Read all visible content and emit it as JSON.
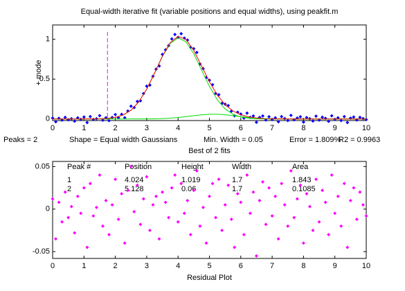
{
  "chart_data": [
    {
      "type": "scatter",
      "title": "Equal-width iterative fit (variable positions and equal widths), using peakfit.m",
      "ylabel": "+ mode",
      "xlabel": "Best of 2 fits",
      "footer": [
        "Peaks = 2",
        "Shape = Equal width Gaussians",
        "Min. Width = 0.05",
        "Error = 1.809%",
        "R2 = 0.9963"
      ],
      "xlim": [
        0,
        10
      ],
      "xticks": [
        0,
        1,
        2,
        3,
        4,
        5,
        6,
        7,
        8,
        9,
        10
      ],
      "ylim": [
        -0.02,
        1.18
      ],
      "yticks": [
        0,
        0.5,
        1
      ],
      "vline": {
        "x": 1.75,
        "color": "#ff00ff"
      },
      "series": [
        {
          "style": "markers",
          "color": "#0000ff",
          "x": [
            0,
            0.1,
            0.2,
            0.3,
            0.4,
            0.5,
            0.6,
            0.7,
            0.8,
            0.9,
            1,
            1.1,
            1.2,
            1.3,
            1.4,
            1.5,
            1.6,
            1.7,
            1.8,
            1.9,
            2,
            2.1,
            2.2,
            2.3,
            2.4,
            2.5,
            2.6,
            2.7,
            2.8,
            2.9,
            3,
            3.1,
            3.2,
            3.3,
            3.4,
            3.5,
            3.6,
            3.7,
            3.8,
            3.9,
            4,
            4.1,
            4.2,
            4.3,
            4.4,
            4.5,
            4.6,
            4.7,
            4.8,
            4.9,
            5,
            5.1,
            5.2,
            5.3,
            5.4,
            5.5,
            5.6,
            5.7,
            5.8,
            5.9,
            6,
            6.1,
            6.2,
            6.3,
            6.4,
            6.5,
            6.6,
            6.7,
            6.8,
            6.9,
            7,
            7.1,
            7.2,
            7.3,
            7.4,
            7.5,
            7.6,
            7.7,
            7.8,
            7.9,
            8,
            8.1,
            8.2,
            8.3,
            8.4,
            8.5,
            8.6,
            8.7,
            8.8,
            8.9,
            9,
            9.1,
            9.2,
            9.3,
            9.4,
            9.5,
            9.6,
            9.7,
            9.8,
            9.9,
            10
          ],
          "values": [
            0.012,
            -0.035,
            0.008,
            -0.015,
            0.02,
            -0.01,
            0.003,
            -0.028,
            0.015,
            -0.005,
            0.025,
            -0.045,
            0.03,
            -0.007,
            0.003,
            0.042,
            -0.016,
            0.016,
            -0.021,
            0.019,
            0.055,
            0.016,
            0.058,
            0.016,
            0.1,
            0.16,
            0.143,
            0.22,
            0.228,
            0.319,
            0.412,
            0.425,
            0.535,
            0.625,
            0.665,
            0.81,
            0.868,
            0.92,
            1.005,
            1.06,
            1.025,
            1.07,
            1.015,
            0.99,
            0.9,
            0.882,
            0.835,
            0.69,
            0.632,
            0.52,
            0.485,
            0.43,
            0.32,
            0.305,
            0.195,
            0.185,
            0.168,
            0.098,
            0.04,
            0.084,
            0.061,
            0.012,
            0.073,
            0.02,
            0.038,
            -0.042,
            0.019,
            0.038,
            -0.014,
            0.028,
            -0.006,
            0.015,
            -0.035,
            0.03,
            0.005,
            -0.02,
            0.045,
            -0.01,
            0.012,
            0.028,
            -0.04,
            0.018,
            0.003,
            -0.025,
            0.035,
            -0.015,
            0.022,
            0.008,
            -0.03,
            0.04,
            -0.005,
            0.015,
            -0.02,
            0.03,
            -0.045,
            0.01,
            0.025,
            -0.012,
            0.02,
            0.005,
            -0.008
          ]
        },
        {
          "style": "line",
          "color": "#00dd00",
          "x": [
            0,
            0.25,
            0.5,
            0.75,
            1,
            1.25,
            1.5,
            1.75,
            2,
            2.25,
            2.5,
            2.75,
            3,
            3.25,
            3.5,
            3.75,
            4,
            4.25,
            4.5,
            4.75,
            5,
            5.25,
            5.5,
            5.75,
            6,
            6.25,
            6.5,
            6.75,
            7,
            7.25,
            7.5,
            7.75,
            8,
            8.25,
            8.5,
            8.75,
            9,
            9.25,
            9.5,
            9.75,
            10
          ],
          "values": [
            0,
            0,
            0,
            0,
            0.0002,
            0.0006,
            0.0023,
            0.007,
            0.02,
            0.05,
            0.11,
            0.215,
            0.373,
            0.573,
            0.783,
            0.948,
            1.018,
            0.97,
            0.82,
            0.614,
            0.409,
            0.241,
            0.126,
            0.059,
            0.024,
            0.009,
            0.003,
            0.001,
            0,
            0,
            0,
            0,
            0,
            0,
            0,
            0,
            0,
            0,
            0,
            0,
            0
          ]
        },
        {
          "style": "line",
          "color": "#00dd00",
          "x": [
            0,
            0.25,
            0.5,
            0.75,
            1,
            1.25,
            1.5,
            1.75,
            2,
            2.25,
            2.5,
            2.75,
            3,
            3.25,
            3.5,
            3.75,
            4,
            4.25,
            4.5,
            4.75,
            5,
            5.25,
            5.5,
            5.75,
            6,
            6.25,
            6.5,
            6.75,
            7,
            7.25,
            7.5,
            7.75,
            8,
            8.25,
            8.5,
            8.75,
            9,
            9.25,
            9.5,
            9.75,
            10
          ],
          "values": [
            0,
            0,
            0,
            0,
            0,
            0,
            0,
            0,
            0,
            0,
            0.0002,
            0.0004,
            0.0008,
            0.002,
            0.005,
            0.01,
            0.018,
            0.029,
            0.041,
            0.052,
            0.059,
            0.059,
            0.053,
            0.042,
            0.029,
            0.018,
            0.01,
            0.005,
            0.002,
            0.001,
            0,
            0,
            0,
            0,
            0,
            0,
            0,
            0,
            0,
            0,
            0
          ]
        },
        {
          "style": "line",
          "color": "#ff0000",
          "x": [
            0,
            0.25,
            0.5,
            0.75,
            1,
            1.25,
            1.5,
            1.75,
            2,
            2.25,
            2.5,
            2.75,
            3,
            3.25,
            3.5,
            3.75,
            4,
            4.25,
            4.5,
            4.75,
            5,
            5.25,
            5.5,
            5.75,
            6,
            6.25,
            6.5,
            6.75,
            7,
            7.25,
            7.5,
            7.75,
            8,
            8.25,
            8.5,
            8.75,
            9,
            9.25,
            9.5,
            9.75,
            10
          ],
          "values": [
            0,
            0,
            0,
            0,
            0.0002,
            0.0006,
            0.0023,
            0.007,
            0.02,
            0.05,
            0.11,
            0.215,
            0.374,
            0.575,
            0.788,
            0.958,
            1.036,
            0.999,
            0.861,
            0.666,
            0.468,
            0.3,
            0.179,
            0.101,
            0.053,
            0.027,
            0.013,
            0.006,
            0.002,
            0.001,
            0,
            0,
            0,
            0,
            0,
            0,
            0,
            0,
            0,
            0,
            0
          ]
        }
      ]
    },
    {
      "type": "scatter",
      "xlabel": "Residual Plot",
      "xlim": [
        0,
        10
      ],
      "xticks": [
        0,
        1,
        2,
        3,
        4,
        5,
        6,
        7,
        8,
        9,
        10
      ],
      "ylim": [
        -0.058,
        0.056
      ],
      "yticks": [
        -0.05,
        0,
        0.05
      ],
      "table": {
        "columns": [
          "Peak #",
          "Position",
          "Height",
          "Width",
          "Area"
        ],
        "rows": [
          [
            1,
            4.024,
            1.019,
            1.7,
            1.843
          ],
          [
            2,
            5.128,
            0.06,
            1.7,
            0.1085
          ]
        ]
      },
      "series": [
        {
          "style": "markers",
          "color": "#ff00ff",
          "x": [
            0,
            0.1,
            0.2,
            0.3,
            0.4,
            0.5,
            0.6,
            0.7,
            0.8,
            0.9,
            1,
            1.1,
            1.2,
            1.3,
            1.4,
            1.5,
            1.6,
            1.7,
            1.8,
            1.9,
            2,
            2.1,
            2.2,
            2.3,
            2.4,
            2.5,
            2.6,
            2.7,
            2.8,
            2.9,
            3,
            3.1,
            3.2,
            3.3,
            3.4,
            3.5,
            3.6,
            3.7,
            3.8,
            3.9,
            4,
            4.1,
            4.2,
            4.3,
            4.4,
            4.5,
            4.6,
            4.7,
            4.8,
            4.9,
            5,
            5.1,
            5.2,
            5.3,
            5.4,
            5.5,
            5.6,
            5.7,
            5.8,
            5.9,
            6,
            6.1,
            6.2,
            6.3,
            6.4,
            6.5,
            6.6,
            6.7,
            6.8,
            6.9,
            7,
            7.1,
            7.2,
            7.3,
            7.4,
            7.5,
            7.6,
            7.7,
            7.8,
            7.9,
            8,
            8.1,
            8.2,
            8.3,
            8.4,
            8.5,
            8.6,
            8.7,
            8.8,
            8.9,
            9,
            9.1,
            9.2,
            9.3,
            9.4,
            9.5,
            9.6,
            9.7,
            9.8,
            9.9,
            10
          ],
          "values": [
            0.012,
            -0.035,
            0.008,
            -0.015,
            0.02,
            -0.01,
            0.003,
            -0.028,
            0.015,
            -0.005,
            0.025,
            -0.045,
            0.03,
            -0.008,
            0.002,
            0.04,
            -0.02,
            0.01,
            -0.03,
            0.005,
            0.035,
            -0.012,
            0.018,
            -0.04,
            0.022,
            0.05,
            -0.003,
            0.028,
            -0.018,
            0.012,
            0.038,
            -0.025,
            0.005,
            0.015,
            -0.035,
            0.02,
            0.008,
            -0.01,
            0.025,
            0.04,
            -0.015,
            0.03,
            -0.005,
            0.01,
            -0.03,
            0.022,
            0.045,
            -0.02,
            0.002,
            -0.04,
            0.015,
            0.03,
            -0.01,
            0.035,
            -0.025,
            0.005,
            0.028,
            -0.012,
            -0.045,
            0.018,
            0.008,
            -0.03,
            0.04,
            -0.005,
            0.02,
            -0.055,
            0.01,
            0.032,
            -0.018,
            0.025,
            -0.008,
            0.015,
            -0.035,
            0.03,
            0.005,
            -0.02,
            0.045,
            -0.01,
            0.012,
            0.028,
            -0.04,
            0.018,
            0.003,
            -0.025,
            0.035,
            -0.015,
            0.022,
            0.008,
            -0.03,
            0.04,
            -0.005,
            0.015,
            -0.02,
            0.03,
            -0.045,
            0.01,
            0.025,
            -0.012,
            0.02,
            0.005,
            -0.008
          ]
        }
      ]
    }
  ]
}
